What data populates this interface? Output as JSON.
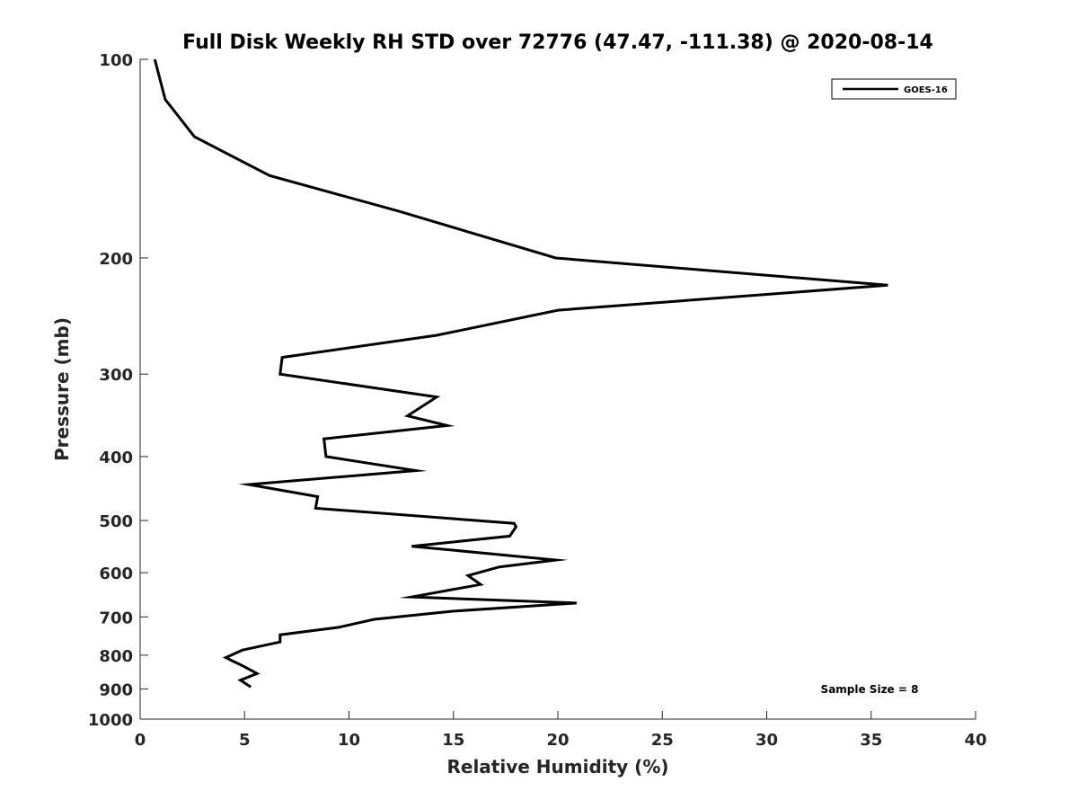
{
  "chart_data": {
    "type": "line",
    "title": "Full Disk Weekly RH STD over 72776 (47.47, -111.38) @ 2020-08-14",
    "xlabel": "Relative Humidity (%)",
    "ylabel": "Pressure (mb)",
    "xlim": [
      0,
      40
    ],
    "ylim": [
      100,
      1000
    ],
    "yscale": "log",
    "yreversed": true,
    "xticks": [
      0,
      5,
      10,
      15,
      20,
      25,
      30,
      35,
      40
    ],
    "yticks": [
      100,
      200,
      300,
      400,
      500,
      600,
      700,
      800,
      900,
      1000
    ],
    "grid": false,
    "legend_position": "top-right",
    "annotation": "Sample Size = 8",
    "series": [
      {
        "name": "GOES-16",
        "color": "#000000",
        "x": [
          0.7,
          1.2,
          2.6,
          6.2,
          12.4,
          19.9,
          35.8,
          20.0,
          14.2,
          6.8,
          6.7,
          14.2,
          12.8,
          14.7,
          8.8,
          8.9,
          13.2,
          5.2,
          8.5,
          8.4,
          17.9,
          18.0,
          17.7,
          13.0,
          19.9,
          17.2,
          15.7,
          16.3,
          13.0,
          20.9,
          15.0,
          11.2,
          9.5,
          6.7,
          6.7,
          4.9,
          4.1,
          4.9,
          5.6,
          4.8,
          5.3
        ],
        "y": [
          100,
          115,
          131,
          150,
          170,
          200,
          220,
          240,
          262,
          283,
          300,
          325,
          347,
          359,
          376,
          400,
          420,
          441,
          460,
          479,
          505,
          511,
          528,
          547,
          574,
          588,
          606,
          625,
          653,
          667,
          686,
          706,
          726,
          745,
          764,
          786,
          807,
          830,
          853,
          873,
          894
        ]
      }
    ]
  }
}
